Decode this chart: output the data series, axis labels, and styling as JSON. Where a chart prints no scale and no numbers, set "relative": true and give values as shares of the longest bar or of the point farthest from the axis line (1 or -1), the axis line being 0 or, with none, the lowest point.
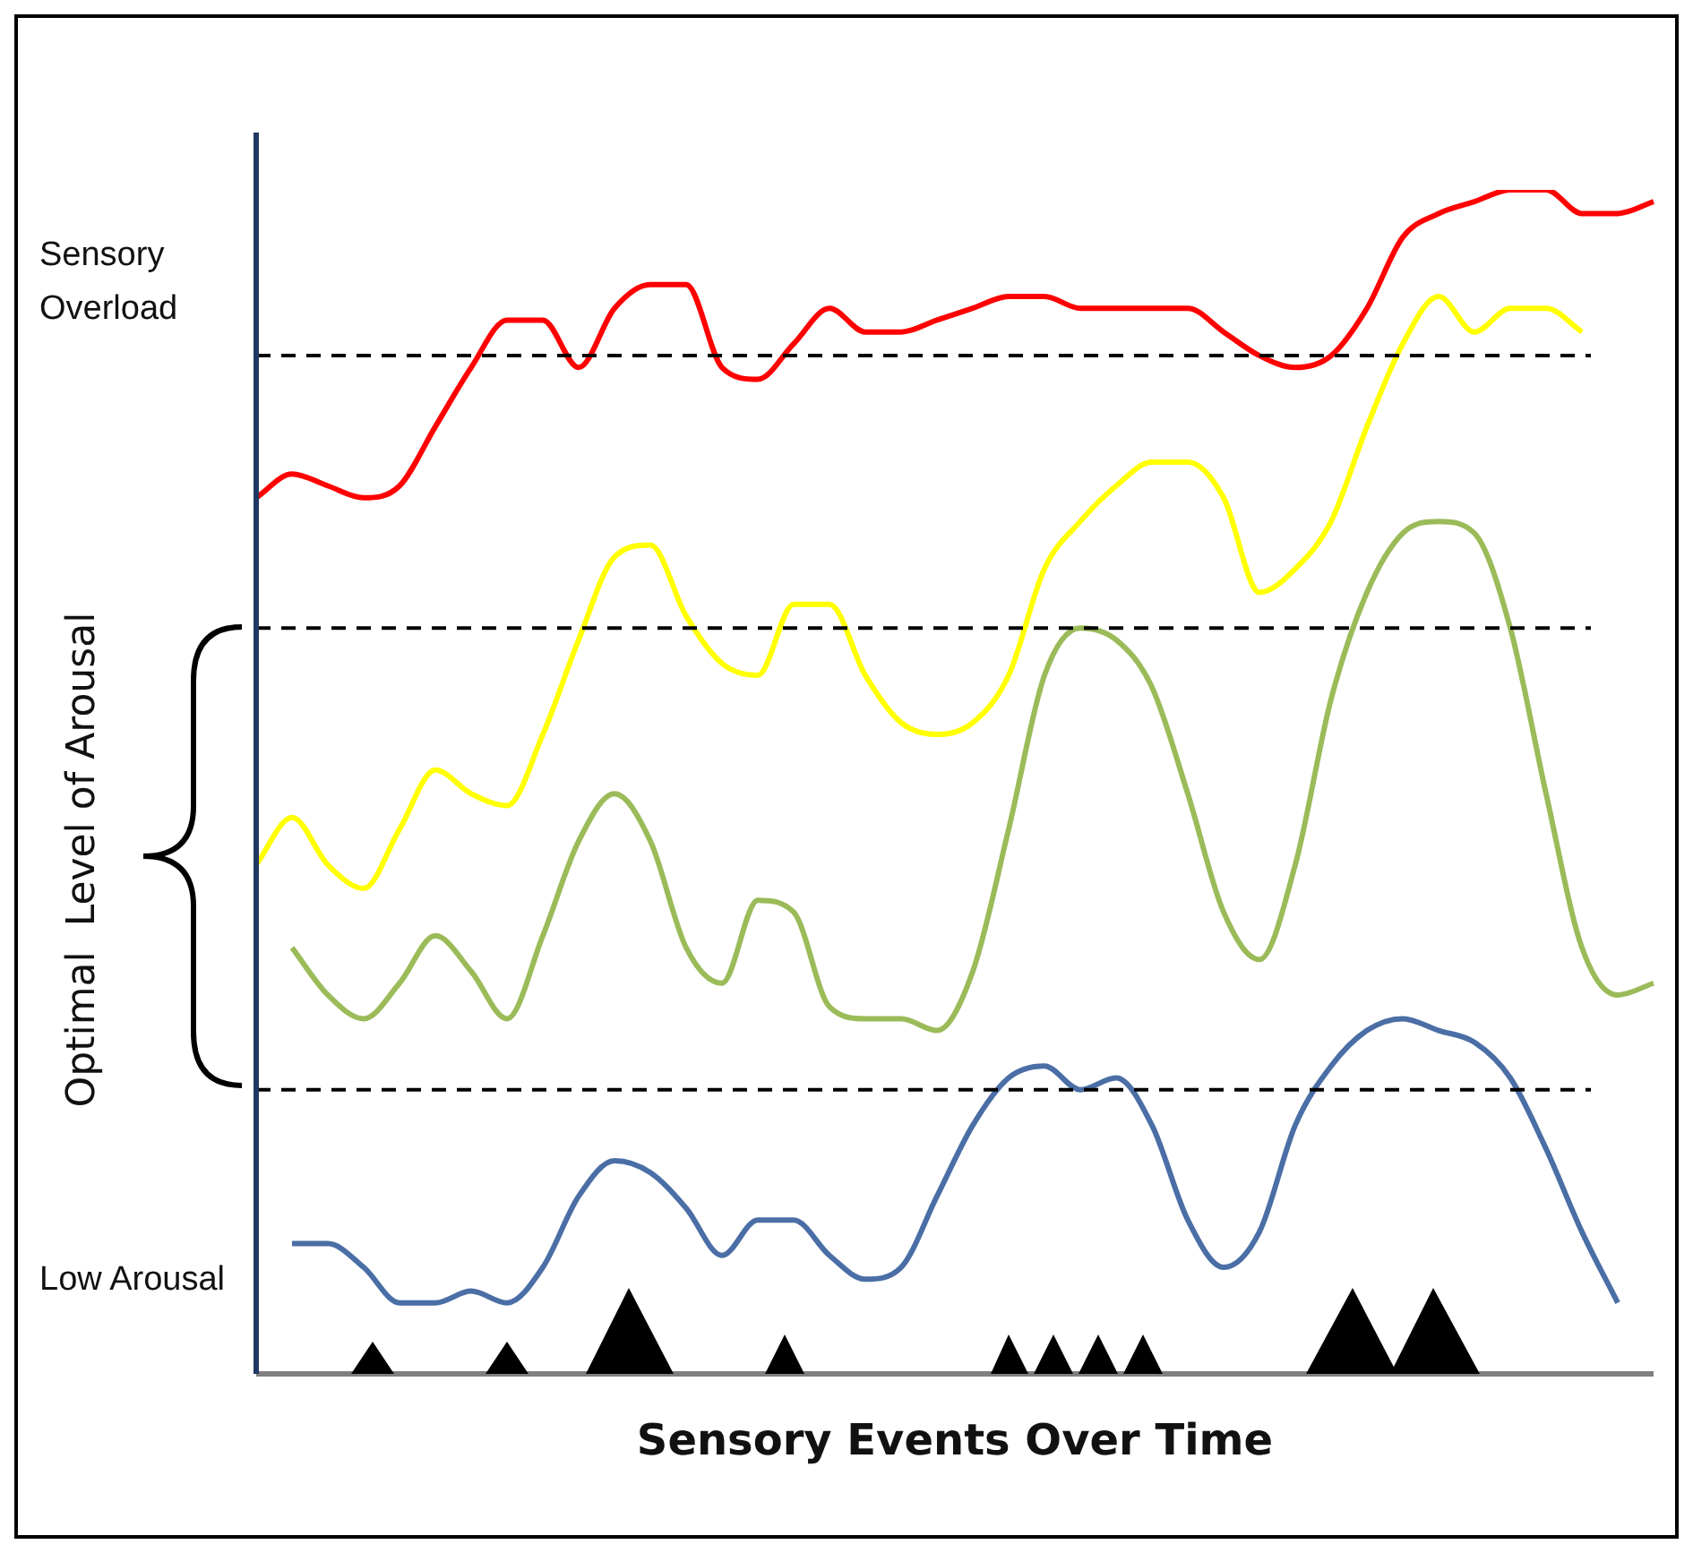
{
  "chart_data": {
    "type": "line",
    "xlabel": "Sensory Events Over Time",
    "ylabel": "Optimal  Level of Arousal",
    "relative": true,
    "marker": "none",
    "categories": [
      null,
      null,
      null,
      null,
      null,
      null,
      null,
      null,
      null,
      null,
      null,
      null,
      null,
      null,
      null,
      null,
      null,
      null,
      null,
      null,
      null,
      null,
      null,
      null,
      null,
      null,
      null,
      null,
      null,
      null,
      null,
      null,
      null,
      null,
      null,
      null,
      null,
      null,
      null,
      null
    ],
    "series": [
      {
        "color": "#ff0000",
        "values": [
          0.74,
          0.76,
          0.75,
          0.74,
          0.75,
          0.8,
          0.85,
          0.89,
          0.89,
          0.85,
          0.9,
          0.92,
          0.92,
          0.85,
          0.84,
          0.87,
          0.9,
          0.88,
          0.88,
          0.89,
          0.9,
          0.91,
          0.91,
          0.9,
          0.9,
          0.9,
          0.9,
          0.88,
          0.86,
          0.85,
          0.86,
          0.9,
          0.96,
          0.98,
          0.99,
          1.0,
          1.0,
          0.98,
          0.98,
          0.99
        ]
      },
      {
        "color": "#ffff00",
        "values": [
          0.43,
          0.47,
          0.43,
          0.41,
          0.46,
          0.51,
          0.49,
          0.48,
          0.54,
          0.62,
          0.69,
          0.7,
          0.64,
          0.6,
          0.59,
          0.65,
          0.65,
          0.59,
          0.55,
          0.54,
          0.55,
          0.59,
          0.68,
          0.72,
          0.75,
          0.77,
          0.77,
          0.74,
          0.66,
          0.68,
          0.72,
          0.8,
          0.87,
          0.91,
          0.88,
          0.9,
          0.9,
          0.88,
          null,
          null
        ]
      },
      {
        "color": "#9bbb59",
        "values": [
          null,
          0.36,
          0.32,
          0.3,
          0.33,
          0.37,
          0.34,
          0.3,
          0.37,
          0.45,
          0.49,
          0.45,
          0.36,
          0.33,
          0.4,
          0.39,
          0.31,
          0.3,
          0.3,
          0.29,
          0.34,
          0.46,
          0.59,
          0.63,
          0.62,
          0.58,
          0.49,
          0.39,
          0.35,
          0.43,
          0.57,
          0.66,
          0.71,
          0.72,
          0.71,
          0.63,
          0.49,
          0.36,
          0.32,
          0.33
        ]
      },
      {
        "color": "#4a6ea5",
        "values": [
          null,
          0.11,
          0.11,
          0.09,
          0.06,
          0.06,
          0.07,
          0.06,
          0.09,
          0.15,
          0.18,
          0.17,
          0.14,
          0.1,
          0.13,
          0.13,
          0.1,
          0.08,
          0.09,
          0.15,
          0.21,
          0.25,
          0.26,
          0.24,
          0.25,
          0.21,
          0.13,
          0.09,
          0.12,
          0.21,
          0.26,
          0.29,
          0.3,
          0.29,
          0.28,
          0.25,
          0.19,
          0.12,
          0.06,
          null
        ]
      }
    ],
    "ref_lines": [
      {
        "axis": "y",
        "value": 0.86,
        "color": "#000000",
        "line_style": "dashed"
      },
      {
        "axis": "y",
        "value": 0.63,
        "color": "#000000",
        "line_style": "dashed"
      },
      {
        "axis": "y",
        "value": 0.24,
        "color": "#000000",
        "line_style": "dashed"
      }
    ],
    "annotations": [
      "Sensory Overload",
      "Low Arousal"
    ]
  }
}
